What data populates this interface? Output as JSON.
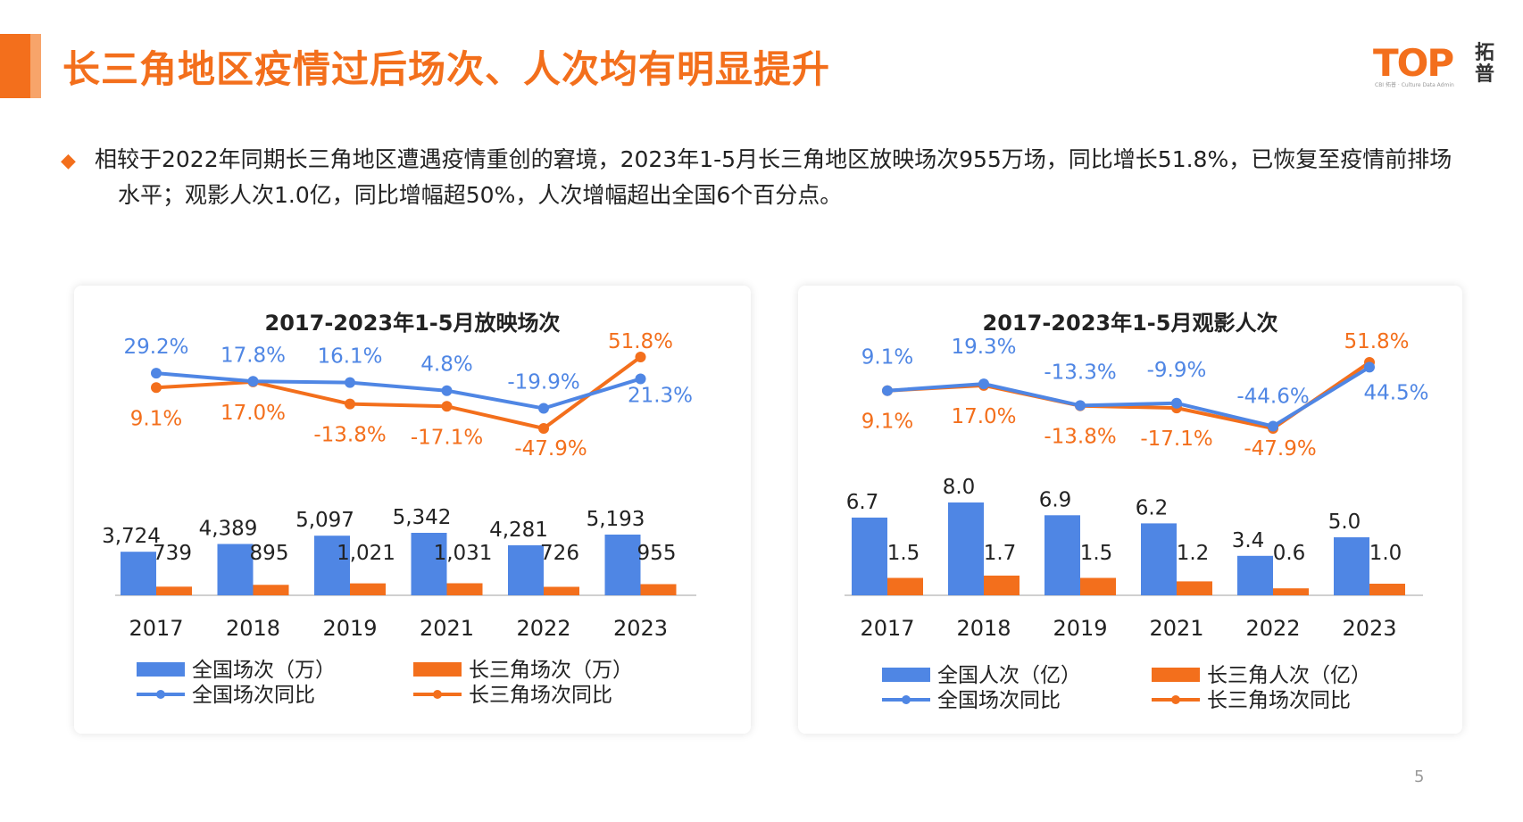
{
  "header": {
    "title": "长三角地区疫情过后场次、人次均有明显提升",
    "logo_text": "TOP",
    "logo_cn": "拓普",
    "logo_tag": "CBI 拓普 · Culture Data Admin"
  },
  "summary": {
    "text": "相较于2022年同期长三角地区遭遇疫情重创的窘境，2023年1-5月长三角地区放映场次955万场，同比增长51.8%，已恢复至疫情前排场水平；观影人次1.0亿，同比增幅超50%，人次增幅超出全国6个百分点。"
  },
  "colors": {
    "accent": "#f36f1c",
    "blue": "#4f86e4",
    "orange": "#f36f1c"
  },
  "chart_data": [
    {
      "type": "bar",
      "title": "2017-2023年1-5月放映场次",
      "categories": [
        "2017",
        "2018",
        "2019",
        "2021",
        "2022",
        "2023"
      ],
      "series": [
        {
          "name": "全国场次（万）",
          "type": "bar",
          "color": "#4f86e4",
          "values": [
            3724,
            4389,
            5097,
            5342,
            4281,
            5193
          ],
          "labels": [
            "3,724",
            "4,389",
            "5,097",
            "5,342",
            "4,281",
            "5,193"
          ]
        },
        {
          "name": "长三角场次（万）",
          "type": "bar",
          "color": "#f36f1c",
          "values": [
            739,
            895,
            1021,
            1031,
            726,
            955
          ],
          "labels": [
            "739",
            "895",
            "1,021",
            "1,031",
            "726",
            "955"
          ]
        },
        {
          "name": "全国场次同比",
          "type": "line",
          "color": "#4f86e4",
          "values": [
            29.2,
            17.8,
            16.1,
            4.8,
            -19.9,
            21.3
          ],
          "labels": [
            "29.2%",
            "17.8%",
            "16.1%",
            "4.8%",
            "-19.9%",
            "21.3%"
          ]
        },
        {
          "name": "长三角场次同比",
          "type": "line",
          "color": "#f36f1c",
          "values": [
            9.1,
            17.0,
            -13.8,
            -17.1,
            -47.9,
            51.8
          ],
          "labels": [
            "9.1%",
            "17.0%",
            "-13.8%",
            "-17.1%",
            "-47.9%",
            "51.8%"
          ]
        }
      ],
      "legend": "bottom"
    },
    {
      "type": "bar",
      "title": "2017-2023年1-5月观影人次",
      "categories": [
        "2017",
        "2018",
        "2019",
        "2021",
        "2022",
        "2023"
      ],
      "series": [
        {
          "name": "全国人次（亿）",
          "type": "bar",
          "color": "#4f86e4",
          "values": [
            6.7,
            8.0,
            6.9,
            6.2,
            3.4,
            5.0
          ],
          "labels": [
            "6.7",
            "8.0",
            "6.9",
            "6.2",
            "3.4",
            "5.0"
          ]
        },
        {
          "name": "长三角人次（亿）",
          "type": "bar",
          "color": "#f36f1c",
          "values": [
            1.5,
            1.7,
            1.5,
            1.2,
            0.6,
            1.0
          ],
          "labels": [
            "1.5",
            "1.7",
            "1.5",
            "1.2",
            "0.6",
            "1.0"
          ]
        },
        {
          "name": "全国场次同比",
          "type": "line",
          "color": "#4f86e4",
          "values": [
            9.1,
            19.3,
            -13.3,
            -9.9,
            -44.6,
            44.5
          ],
          "labels": [
            "9.1%",
            "19.3%",
            "-13.3%",
            "-9.9%",
            "-44.6%",
            "44.5%"
          ]
        },
        {
          "name": "长三角场次同比",
          "type": "line",
          "color": "#f36f1c",
          "values": [
            9.1,
            17.0,
            -13.8,
            -17.1,
            -47.9,
            51.8
          ],
          "labels": [
            "9.1%",
            "17.0%",
            "-13.8%",
            "-17.1%",
            "-47.9%",
            "51.8%"
          ]
        }
      ],
      "legend": "bottom"
    }
  ],
  "footer": {
    "page_number": "5"
  }
}
